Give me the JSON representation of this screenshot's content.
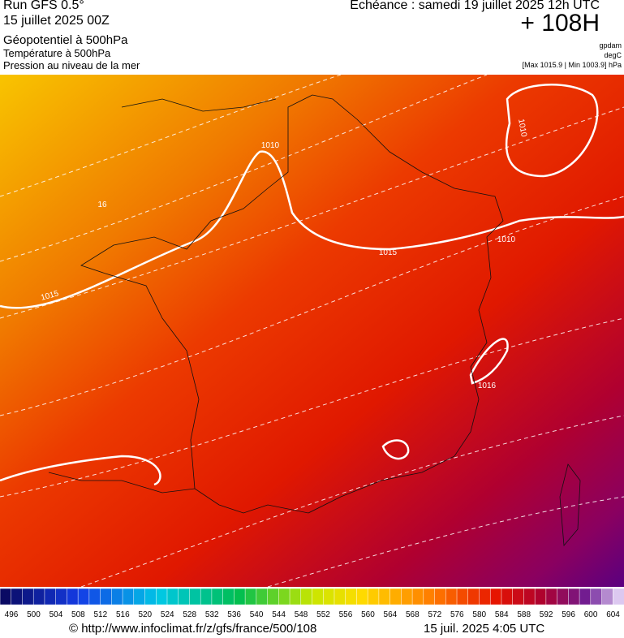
{
  "header": {
    "run": "Run GFS 0.5°",
    "date": "15 juillet 2025 00Z",
    "field1": "Géopotentiel à 500hPa",
    "field2": "Température à 500hPa",
    "field3": "Pression au niveau de la mer",
    "echeance": "Echéance : samedi 19 juillet 2025 12h UTC",
    "hour": "+ 108H",
    "unit1": "gpdam",
    "unit2": "degC",
    "range": "[Max 1015.9 | Min 1003.9] hPa"
  },
  "map": {
    "contour_labels": [
      "1010",
      "1015",
      "1010",
      "1010",
      "1016",
      "1015",
      "16"
    ]
  },
  "colorbar": {
    "labels": [
      496,
      500,
      504,
      508,
      512,
      516,
      520,
      524,
      528,
      532,
      536,
      540,
      544,
      548,
      552,
      556,
      560,
      564,
      568,
      572,
      576,
      580,
      584,
      588,
      592,
      596,
      600,
      604
    ]
  },
  "footer": {
    "url": "© http://www.infoclimat.fr/z/gfs/france/500/108",
    "timestamp": "15 juil. 2025  4:05 UTC"
  }
}
